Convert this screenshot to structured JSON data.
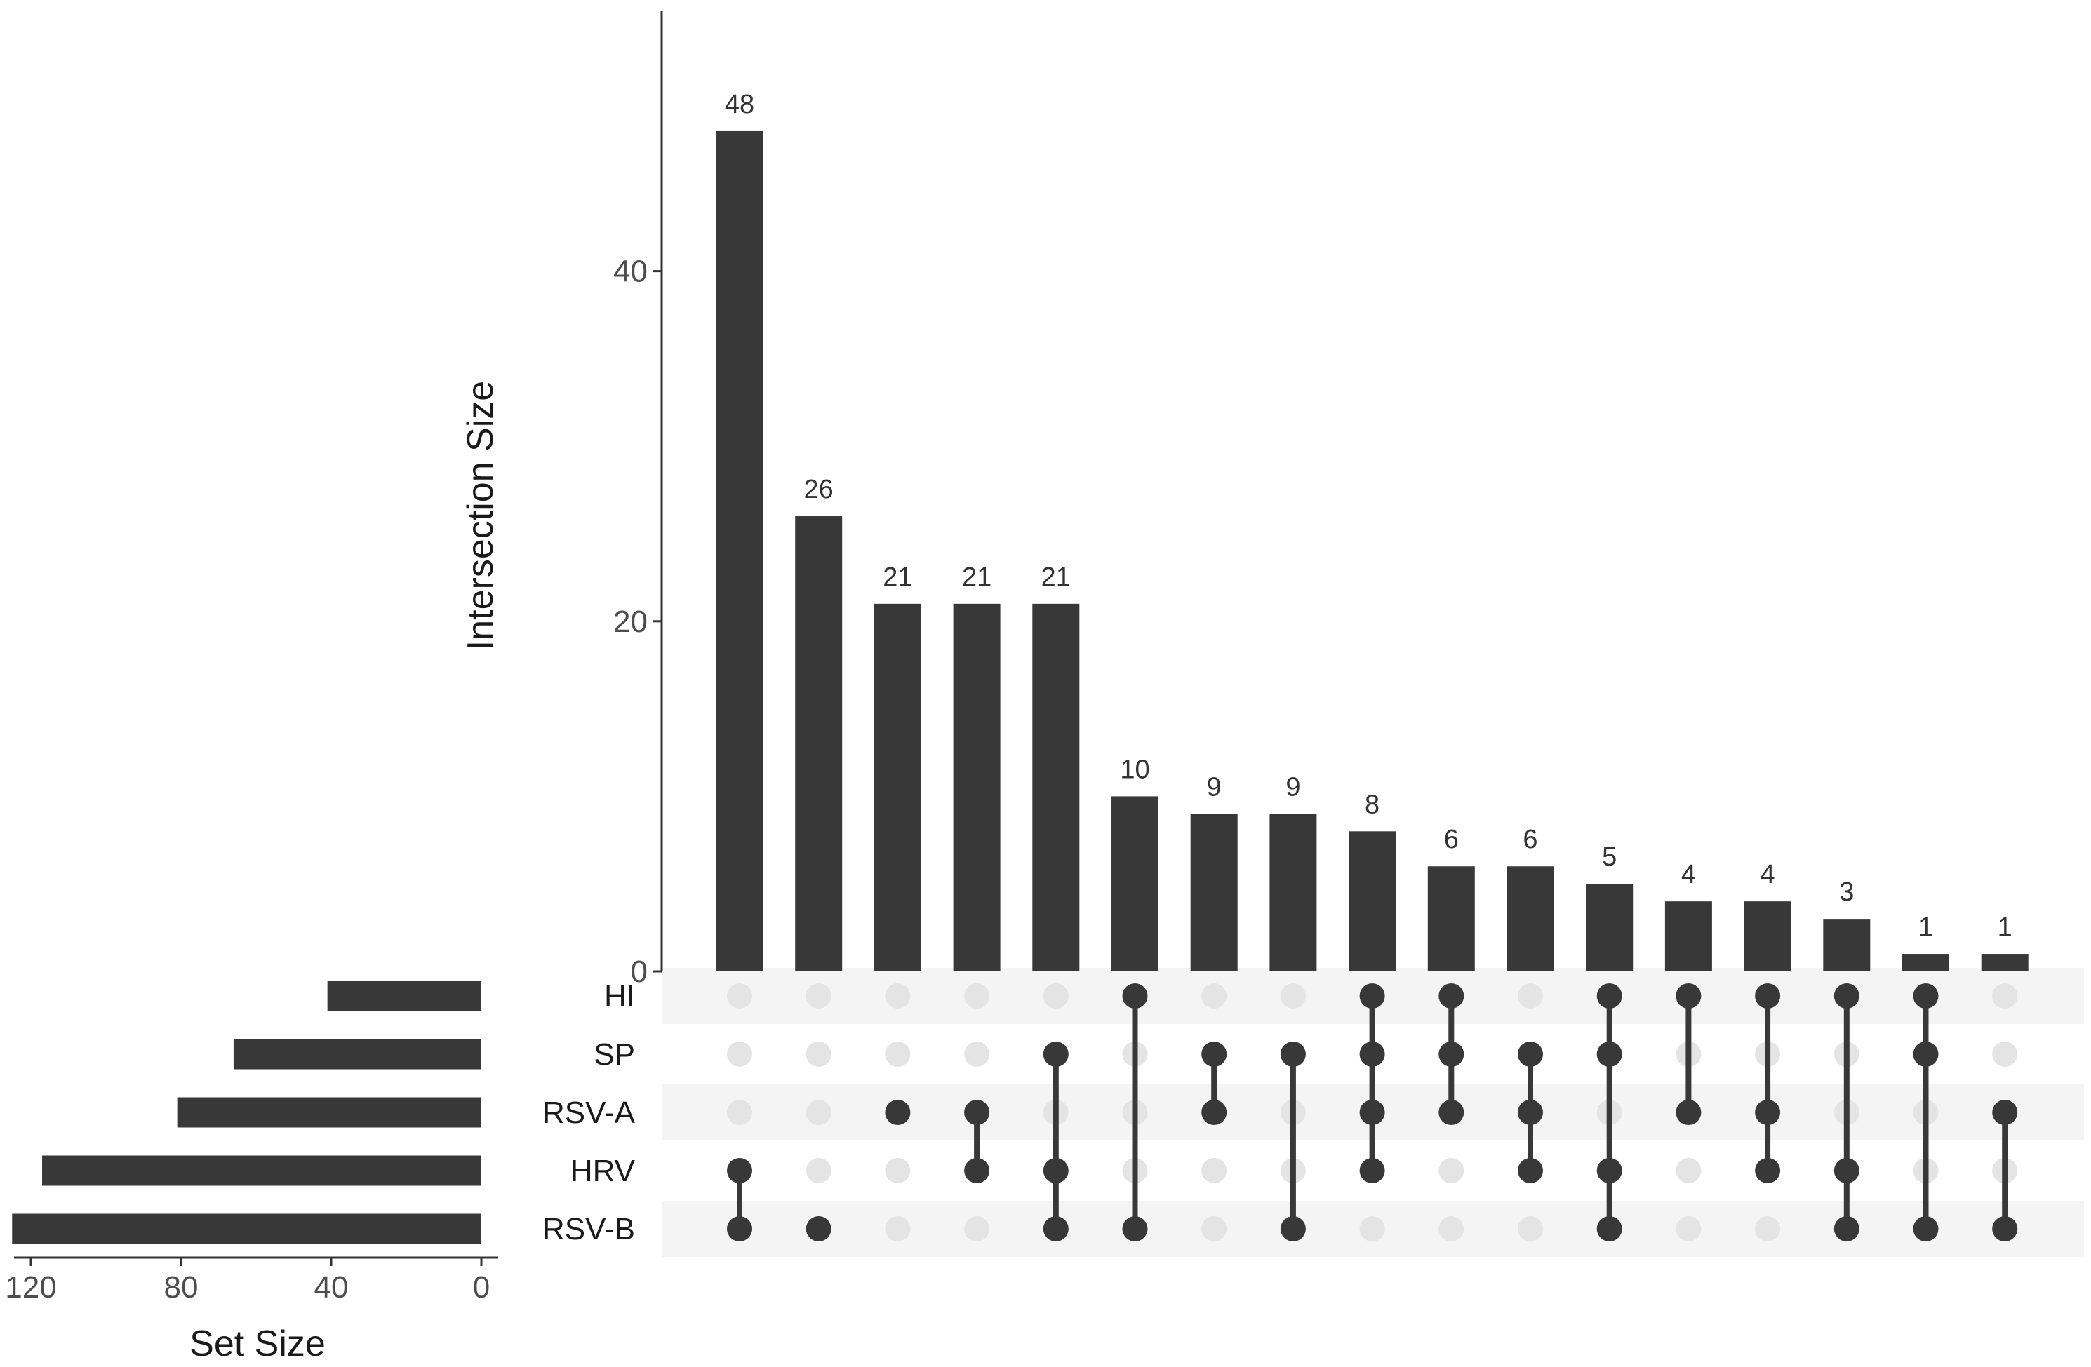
{
  "chart_data": {
    "type": "upset",
    "ylabel": "Intersection Size",
    "xlabel_sets": "Set Size",
    "yticks": [
      0,
      20,
      40
    ],
    "ylim": [
      0,
      55
    ],
    "set_size_ticks": [
      120,
      80,
      40,
      0
    ],
    "set_size_lim": [
      0,
      125
    ],
    "sets": [
      "HI",
      "SP",
      "RSV-A",
      "HRV",
      "RSV-B"
    ],
    "set_sizes": [
      41,
      66,
      81,
      117,
      125
    ],
    "intersections": [
      {
        "size": 48,
        "members": [
          "HRV",
          "RSV-B"
        ]
      },
      {
        "size": 26,
        "members": [
          "RSV-B"
        ]
      },
      {
        "size": 21,
        "members": [
          "RSV-A"
        ]
      },
      {
        "size": 21,
        "members": [
          "RSV-A",
          "HRV"
        ]
      },
      {
        "size": 21,
        "members": [
          "SP",
          "HRV",
          "RSV-B"
        ]
      },
      {
        "size": 10,
        "members": [
          "HI",
          "RSV-B"
        ]
      },
      {
        "size": 9,
        "members": [
          "SP",
          "RSV-A"
        ]
      },
      {
        "size": 9,
        "members": [
          "SP",
          "RSV-B"
        ]
      },
      {
        "size": 8,
        "members": [
          "HI",
          "SP",
          "RSV-A",
          "HRV"
        ]
      },
      {
        "size": 6,
        "members": [
          "HI",
          "SP",
          "RSV-A"
        ]
      },
      {
        "size": 6,
        "members": [
          "SP",
          "RSV-A",
          "HRV"
        ]
      },
      {
        "size": 5,
        "members": [
          "HI",
          "SP",
          "HRV",
          "RSV-B"
        ]
      },
      {
        "size": 4,
        "members": [
          "HI",
          "RSV-A"
        ]
      },
      {
        "size": 4,
        "members": [
          "HI",
          "RSV-A",
          "HRV"
        ]
      },
      {
        "size": 3,
        "members": [
          "HI",
          "HRV",
          "RSV-B"
        ]
      },
      {
        "size": 1,
        "members": [
          "HI",
          "SP",
          "RSV-B"
        ]
      },
      {
        "size": 1,
        "members": [
          "RSV-A",
          "RSV-B"
        ]
      }
    ]
  },
  "colors": {
    "bar": "#383838",
    "dot_active": "#383838",
    "dot_inactive": "#e4e4e4",
    "stripe": "#f4f4f4",
    "axis": "#333333"
  }
}
